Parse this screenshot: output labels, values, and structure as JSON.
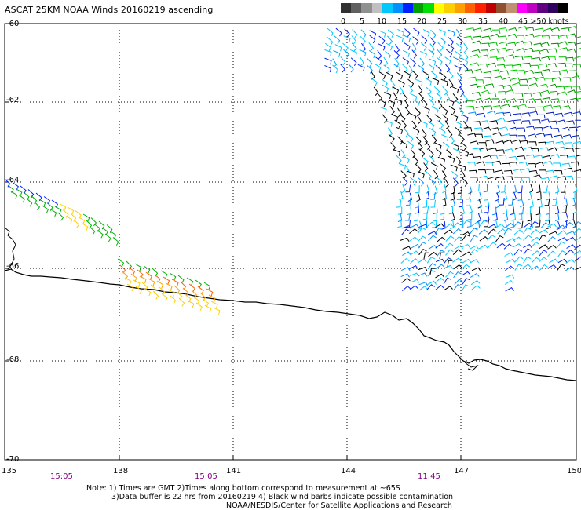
{
  "title": "ASCAT 25KM NOAA Winds 20160219 ascending",
  "legend": {
    "colors": [
      "#303030",
      "#606060",
      "#909090",
      "#c0c0c0",
      "#00c8ff",
      "#0090ff",
      "#0020ff",
      "#00a000",
      "#00e000",
      "#ffff00",
      "#ffd000",
      "#ffa000",
      "#ff6000",
      "#ff2000",
      "#c00000",
      "#905030",
      "#c09070",
      "#ff00ff",
      "#c000c0",
      "#600080",
      "#300060",
      "#000000"
    ],
    "labels": [
      "0",
      "5",
      "10",
      "15",
      "20",
      "25",
      "30",
      "35",
      "40",
      "45",
      ">50 knots"
    ]
  },
  "lat_labels": [
    "-60",
    "-62",
    "-64",
    "-66",
    "-68",
    "-70"
  ],
  "lon_labels": [
    "135",
    "138",
    "141",
    "144",
    "147",
    "150"
  ],
  "time_labels": [
    "15:05",
    "15:05",
    "11:45"
  ],
  "notes": [
    "Note: 1) Times are GMT 2)Times along bottom correspond to measurement at ~65S",
    "3)Data buffer is 22 hrs from 20160219 4) Black wind barbs indicate possible contamination",
    "NOAA/NESDIS/Center for Satellite Applications and Research"
  ]
}
